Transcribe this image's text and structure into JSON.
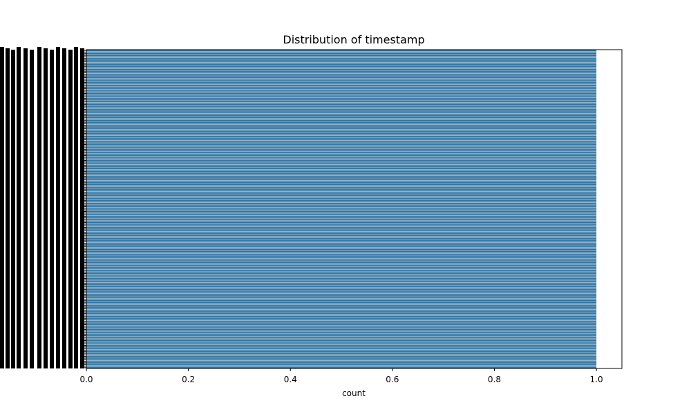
{
  "chart_data": {
    "type": "bar",
    "orientation": "horizontal",
    "title": "Distribution of timestamp",
    "xlabel": "count",
    "ylabel": "",
    "xlim": [
      0,
      1.05
    ],
    "x_ticks": [
      "0.0",
      "0.2",
      "0.4",
      "0.6",
      "0.8",
      "1.0"
    ],
    "x_tick_values": [
      0.0,
      0.2,
      0.4,
      0.6,
      0.8,
      1.0
    ],
    "category_count": 200,
    "bar_value": 1.0,
    "note_y_labels": "category tick labels are overlapping and unreadable (rendered as black smear)",
    "bar_color": "#3274a1",
    "grid": false,
    "legend": "none"
  }
}
